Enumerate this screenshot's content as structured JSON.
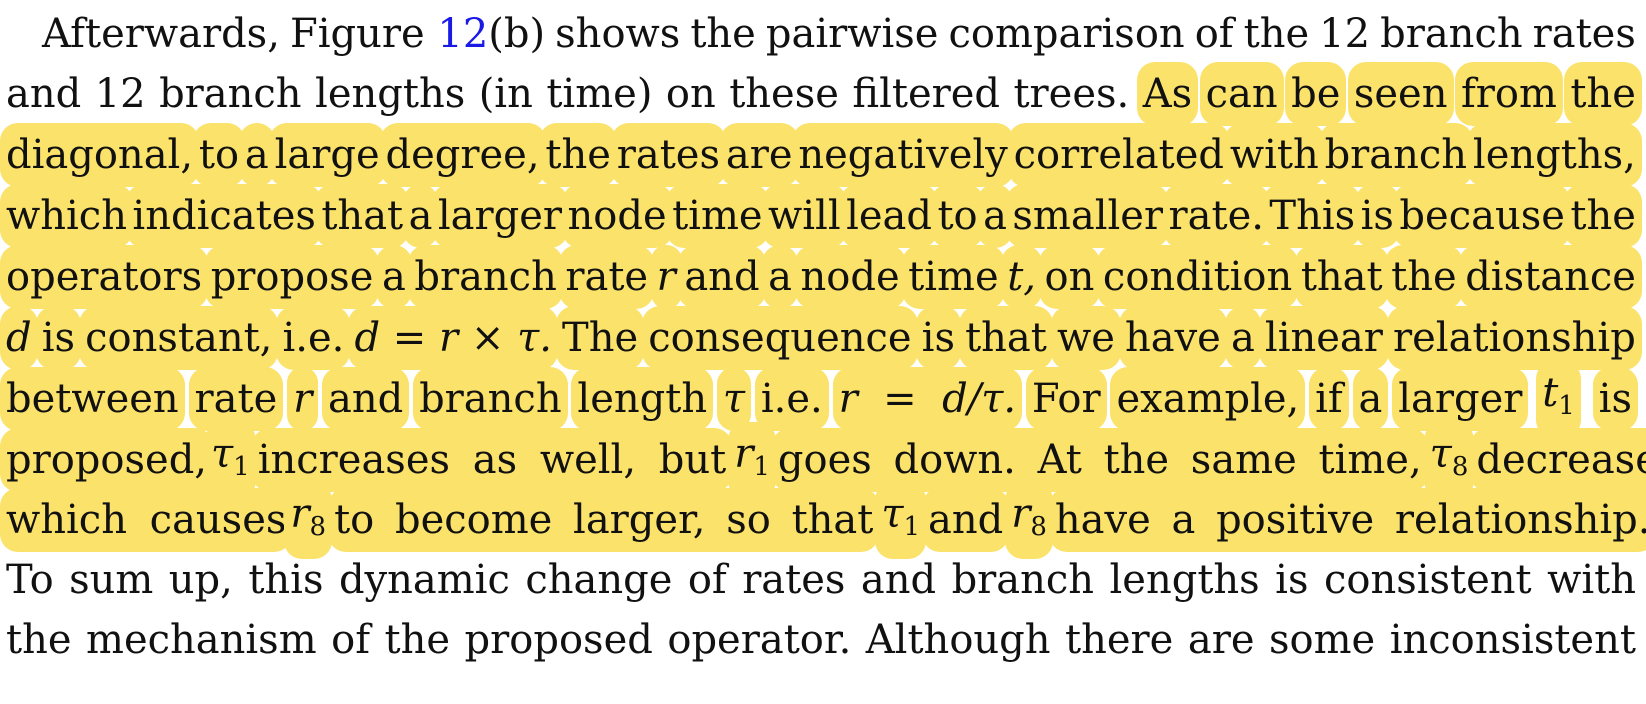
{
  "paragraph": {
    "line1": [
      "Afterwards,",
      "Figure",
      "12",
      "(b)",
      "shows",
      "the",
      "pairwise",
      "comparison",
      "of",
      "the",
      "12",
      "branch",
      "rates"
    ],
    "line2_plain": [
      "and",
      "12",
      "branch",
      "lengths",
      "(in",
      "time)",
      "on",
      "these",
      "filtered",
      "trees."
    ],
    "line2_hl": [
      "As",
      "can",
      "be",
      "seen",
      "from",
      "the"
    ],
    "line3": [
      "diagonal,",
      "to",
      "a",
      "large",
      "degree,",
      "the",
      "rates",
      "are",
      "negatively",
      "correlated",
      "with",
      "branch",
      "lengths,"
    ],
    "line4": [
      "which",
      "indicates",
      "that",
      "a",
      "larger",
      "node",
      "time",
      "will",
      "lead",
      "to",
      "a",
      "smaller",
      "rate.",
      "This",
      "is",
      "because",
      "the"
    ],
    "line5": [
      "operators",
      "propose",
      "a",
      "branch",
      "rate",
      "r",
      "and",
      "a",
      "node",
      "time",
      "t,",
      "on",
      "condition",
      "that",
      "the",
      "distance"
    ],
    "line6": [
      "d",
      "is",
      "constant,",
      "i.e.",
      "d = r × τ.",
      "The",
      "consequence",
      "is",
      "that",
      "we",
      "have",
      "a",
      "linear",
      "relationship"
    ],
    "line7": [
      "between",
      "rate",
      "r",
      "and",
      "branch",
      "length",
      "τ",
      "i.e.",
      "r  =  d/τ.",
      "For",
      "example,",
      "if",
      "a",
      "larger",
      "t",
      "1",
      "is"
    ],
    "line8": [
      "proposed,",
      "τ",
      "1",
      "increases as well, but",
      "r",
      "1",
      "goes down. At the same time,",
      "τ",
      "8",
      "decreases,"
    ],
    "line9": [
      "which causes",
      "r",
      "8",
      "to become larger, so that",
      "τ",
      "1",
      "and",
      "r",
      "8",
      "have a positive relationship."
    ],
    "line10": [
      "To",
      "sum",
      "up,",
      "this",
      "dynamic",
      "change",
      "of",
      "rates",
      "and",
      "branch",
      "lengths",
      "is",
      "consistent",
      "with"
    ],
    "line11": [
      "the",
      "mechanism",
      "of",
      "the",
      "proposed",
      "operator.",
      "Although",
      "there",
      "are",
      "some",
      "inconsistent"
    ]
  },
  "colors": {
    "highlight": "#fbe26a",
    "link": "#1a1ae6",
    "text": "#111111"
  }
}
